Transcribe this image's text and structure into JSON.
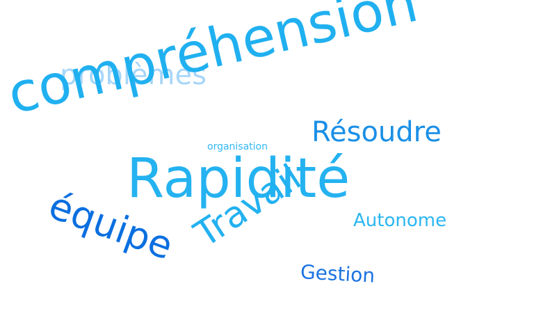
{
  "words": {
    "problemes": {
      "text": "problèmes",
      "color": "#a7d6f8"
    },
    "comprehension": {
      "text": "compréhension",
      "color": "#20b0f0"
    },
    "resoudre": {
      "text": "Résoudre",
      "color": "#1a8fe6"
    },
    "organisation": {
      "text": "organisation",
      "color": "#31b8f2"
    },
    "rapidite": {
      "text": "Rapidité",
      "color": "#24b2f0"
    },
    "equipe": {
      "text": "équipe",
      "color": "#0a6fe0"
    },
    "autonome": {
      "text": "Autonome",
      "color": "#2bb6f1"
    },
    "travail": {
      "text": "Travail",
      "color": "#22b1f0"
    },
    "gestion": {
      "text": "Gestion",
      "color": "#1a73e2"
    }
  }
}
